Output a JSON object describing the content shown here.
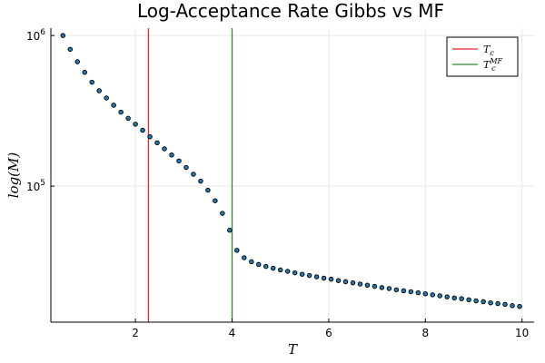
{
  "chart_data": {
    "type": "scatter",
    "title": "Log-Acceptance Rate Gibbs vs MF",
    "xlabel": "T",
    "ylabel": "log(M)",
    "xlim": [
      0.25,
      10.25
    ],
    "ylim": [
      12500,
      1120000
    ],
    "yscale": "log",
    "grid": true,
    "legend_position": "top-right",
    "x_ticks": [
      2,
      4,
      6,
      8,
      10
    ],
    "x_tick_labels": [
      "2",
      "4",
      "6",
      "8",
      "10"
    ],
    "y_ticks": [
      100000,
      1000000
    ],
    "y_tick_labels": [
      {
        "base": "10",
        "exp": "5"
      },
      {
        "base": "10",
        "exp": "6"
      }
    ],
    "vlines": [
      {
        "name": "T",
        "sub": "c",
        "sup": "",
        "x": 2.27,
        "color": "#e8242e"
      },
      {
        "name": "T",
        "sub": "c",
        "sup": "MF",
        "x": 4.0,
        "color": "#2a8a2a"
      }
    ],
    "series": [
      {
        "marker_color": "#1f77b4",
        "x": [
          0.5,
          0.65,
          0.8,
          0.95,
          1.1,
          1.25,
          1.4,
          1.55,
          1.7,
          1.85,
          2.0,
          2.15,
          2.3,
          2.45,
          2.6,
          2.75,
          2.9,
          3.05,
          3.2,
          3.35,
          3.5,
          3.65,
          3.8,
          3.95,
          4.1,
          4.25,
          4.4,
          4.55,
          4.7,
          4.85,
          5.0,
          5.15,
          5.3,
          5.45,
          5.6,
          5.75,
          5.9,
          6.05,
          6.2,
          6.35,
          6.5,
          6.65,
          6.8,
          6.95,
          7.1,
          7.25,
          7.4,
          7.55,
          7.7,
          7.85,
          8.0,
          8.15,
          8.3,
          8.45,
          8.6,
          8.75,
          8.9,
          9.05,
          9.2,
          9.35,
          9.5,
          9.65,
          9.8,
          9.95
        ],
        "y": [
          1000000,
          810000,
          670000,
          570000,
          490000,
          430000,
          385000,
          345000,
          310000,
          282000,
          258000,
          235000,
          213000,
          194000,
          177000,
          161000,
          147000,
          133000,
          120000,
          108000,
          94000,
          80000,
          66000,
          51000,
          37500,
          33500,
          31500,
          30200,
          29300,
          28500,
          27800,
          27200,
          26600,
          26000,
          25500,
          25000,
          24500,
          24100,
          23600,
          23200,
          22800,
          22400,
          22000,
          21600,
          21200,
          20900,
          20500,
          20200,
          19900,
          19600,
          19300,
          19000,
          18700,
          18400,
          18100,
          17900,
          17600,
          17300,
          17100,
          16800,
          16600,
          16400,
          16100,
          15900
        ]
      }
    ]
  }
}
